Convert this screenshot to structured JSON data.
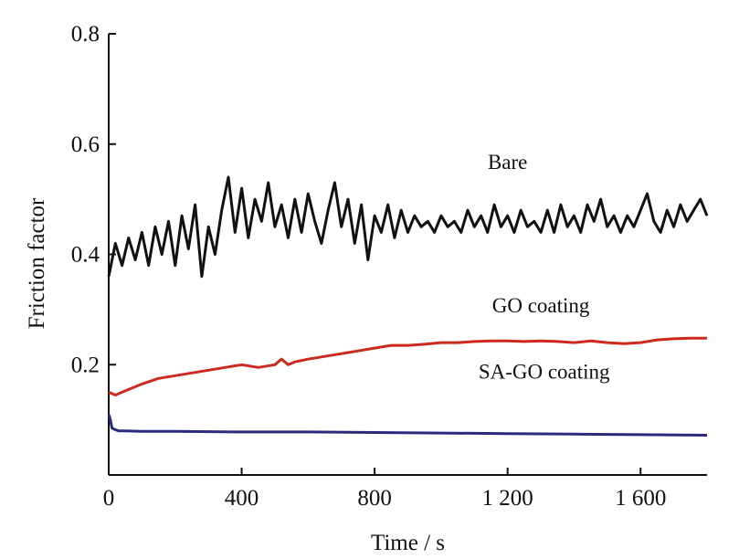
{
  "chart_data": {
    "type": "line",
    "title": "",
    "xlabel": "Time / s",
    "ylabel": "Friction factor",
    "xlim": [
      0,
      1800
    ],
    "ylim": [
      0,
      0.8
    ],
    "x_ticks": [
      0,
      400,
      800,
      1200,
      1600
    ],
    "x_tick_labels": [
      "0",
      "400",
      "800",
      "1 200",
      "1 600"
    ],
    "y_ticks": [
      0.2,
      0.4,
      0.6,
      0.8
    ],
    "y_tick_labels": [
      "0.2",
      "0.4",
      "0.6",
      "0.8"
    ],
    "grid": false,
    "legend": "none",
    "series": [
      {
        "name": "Bare",
        "color": "#111111",
        "x": [
          0,
          20,
          40,
          60,
          80,
          100,
          120,
          140,
          160,
          180,
          200,
          220,
          240,
          260,
          280,
          300,
          320,
          340,
          360,
          380,
          400,
          420,
          440,
          460,
          480,
          500,
          520,
          540,
          560,
          580,
          600,
          620,
          640,
          660,
          680,
          700,
          720,
          740,
          760,
          780,
          800,
          820,
          840,
          860,
          880,
          900,
          920,
          940,
          960,
          980,
          1000,
          1020,
          1040,
          1060,
          1080,
          1100,
          1120,
          1140,
          1160,
          1180,
          1200,
          1220,
          1240,
          1260,
          1280,
          1300,
          1320,
          1340,
          1360,
          1380,
          1400,
          1420,
          1440,
          1460,
          1480,
          1500,
          1520,
          1540,
          1560,
          1580,
          1600,
          1620,
          1640,
          1660,
          1680,
          1700,
          1720,
          1740,
          1760,
          1780,
          1800
        ],
        "values": [
          0.36,
          0.42,
          0.38,
          0.43,
          0.39,
          0.44,
          0.38,
          0.45,
          0.4,
          0.46,
          0.38,
          0.47,
          0.41,
          0.49,
          0.36,
          0.45,
          0.4,
          0.48,
          0.54,
          0.44,
          0.52,
          0.43,
          0.5,
          0.46,
          0.53,
          0.45,
          0.49,
          0.43,
          0.5,
          0.44,
          0.51,
          0.46,
          0.42,
          0.48,
          0.53,
          0.45,
          0.5,
          0.42,
          0.49,
          0.39,
          0.47,
          0.44,
          0.49,
          0.43,
          0.48,
          0.44,
          0.47,
          0.45,
          0.46,
          0.44,
          0.47,
          0.45,
          0.46,
          0.44,
          0.48,
          0.45,
          0.47,
          0.44,
          0.49,
          0.45,
          0.47,
          0.44,
          0.48,
          0.45,
          0.46,
          0.44,
          0.48,
          0.44,
          0.49,
          0.45,
          0.47,
          0.44,
          0.49,
          0.46,
          0.5,
          0.45,
          0.47,
          0.44,
          0.47,
          0.45,
          0.48,
          0.51,
          0.46,
          0.44,
          0.48,
          0.45,
          0.49,
          0.46,
          0.48,
          0.5,
          0.47
        ]
      },
      {
        "name": "GO coating",
        "color": "#cc2a1e",
        "x": [
          0,
          20,
          40,
          60,
          100,
          150,
          200,
          250,
          300,
          350,
          400,
          450,
          500,
          520,
          540,
          560,
          600,
          650,
          700,
          750,
          800,
          850,
          900,
          950,
          1000,
          1050,
          1100,
          1150,
          1200,
          1250,
          1300,
          1350,
          1400,
          1450,
          1500,
          1550,
          1600,
          1650,
          1700,
          1750,
          1800
        ],
        "values": [
          0.15,
          0.145,
          0.15,
          0.155,
          0.165,
          0.175,
          0.18,
          0.185,
          0.19,
          0.195,
          0.2,
          0.195,
          0.2,
          0.21,
          0.2,
          0.205,
          0.21,
          0.215,
          0.22,
          0.225,
          0.23,
          0.235,
          0.235,
          0.237,
          0.24,
          0.24,
          0.242,
          0.243,
          0.243,
          0.242,
          0.243,
          0.242,
          0.24,
          0.243,
          0.24,
          0.238,
          0.24,
          0.245,
          0.247,
          0.248,
          0.248
        ]
      },
      {
        "name": "SA-GO coating",
        "color": "#2b2b7e",
        "x": [
          0,
          5,
          10,
          20,
          30,
          50,
          100,
          200,
          400,
          600,
          800,
          1000,
          1200,
          1400,
          1600,
          1800
        ],
        "values": [
          0.11,
          0.1,
          0.085,
          0.082,
          0.08,
          0.08,
          0.079,
          0.079,
          0.078,
          0.078,
          0.077,
          0.076,
          0.075,
          0.074,
          0.073,
          0.072
        ]
      }
    ],
    "annotations": [
      {
        "text": "Bare",
        "x": 1200,
        "y": 0.555
      },
      {
        "text": "GO coating",
        "x": 1300,
        "y": 0.295
      },
      {
        "text": "SA-GO coating",
        "x": 1310,
        "y": 0.175
      }
    ]
  }
}
